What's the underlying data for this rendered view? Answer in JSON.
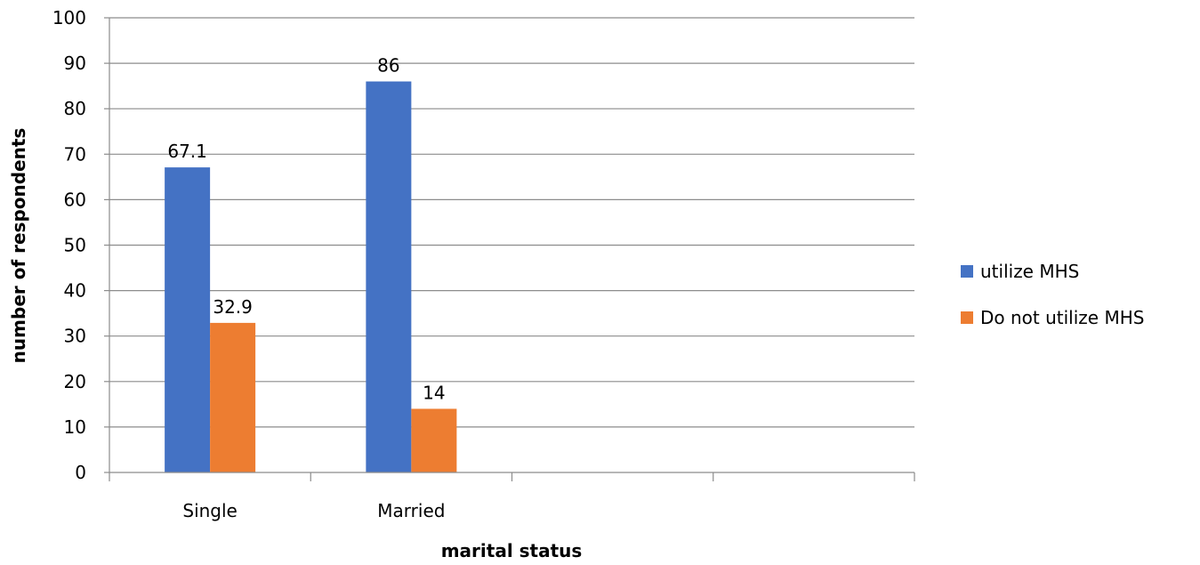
{
  "chart_data": {
    "type": "bar",
    "categories": [
      "Single",
      "Married",
      "",
      ""
    ],
    "series": [
      {
        "name": "utilize MHS",
        "values": [
          67.1,
          86,
          null,
          null
        ],
        "color": "#4472C4"
      },
      {
        "name": "Do not utilize MHS",
        "values": [
          32.9,
          14,
          null,
          null
        ],
        "color": "#ED7D31"
      }
    ],
    "data_labels": [
      [
        "67.1",
        "86",
        null,
        null
      ],
      [
        "32.9",
        "14",
        null,
        null
      ]
    ],
    "title": "",
    "xlabel": "marital status",
    "ylabel": "number of respondents",
    "ylim": [
      0,
      100
    ],
    "yticks": [
      0,
      10,
      20,
      30,
      40,
      50,
      60,
      70,
      80,
      90,
      100
    ],
    "grid": true,
    "legend_position": "right"
  }
}
